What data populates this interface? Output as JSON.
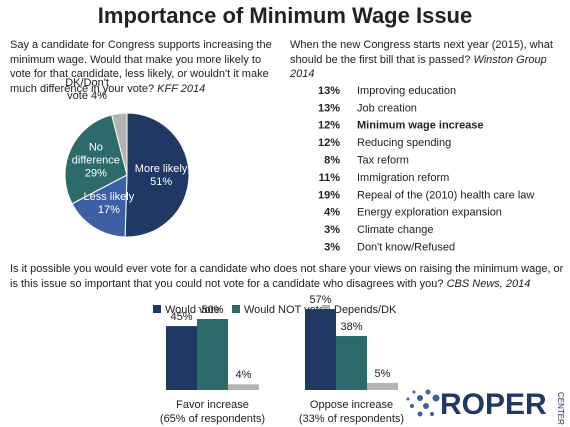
{
  "title": "Importance of Minimum Wage Issue",
  "chart_data": [
    {
      "type": "pie",
      "question": "Say a candidate for Congress supports increasing the minimum wage. Would that make you more likely to vote for that candidate, less likely, or wouldn't it make much difference in your vote?",
      "source": "KFF 2014",
      "categories": [
        "More likely",
        "Less likely",
        "No difference",
        "DK/Don't vote"
      ],
      "values": [
        51,
        17,
        29,
        4
      ],
      "value_labels": [
        "51%",
        "17%",
        "29%",
        "4%"
      ],
      "colors": [
        "#1f3864",
        "#3d5fa6",
        "#2c6a6c",
        "#b3b3b3"
      ]
    },
    {
      "type": "list",
      "question": "When the new Congress starts next year (2015), what should be the first bill that is passed?",
      "source": "Winston Group 2014",
      "categories": [
        "Improving education",
        "Job creation",
        "Minimum wage increase",
        "Reducing spending",
        "Tax reform",
        "Immigration reform",
        "Repeal of the (2010) health care law",
        "Energy exploration expansion",
        "Climate change",
        "Don't know/Refused"
      ],
      "values": [
        13,
        13,
        12,
        12,
        8,
        11,
        19,
        4,
        3,
        3
      ],
      "value_labels": [
        "13%",
        "13%",
        "12%",
        "12%",
        "8%",
        "11%",
        "19%",
        "4%",
        "3%",
        "3%"
      ],
      "highlight": 2
    },
    {
      "type": "bar",
      "question": "Is it possible you would ever vote for a candidate who does not share your views on raising the minimum wage, or is this issue so important that you could not vote for a candidate who disagrees with you?",
      "source": "CBS News, 2014",
      "categories": [
        "Favor increase",
        "Oppose increase"
      ],
      "category_notes": [
        "(65% of respondents)",
        "(33% of respondents)"
      ],
      "series": [
        {
          "name": "Would vote",
          "color": "#1f3864",
          "values": [
            45,
            57
          ],
          "value_labels": [
            "45%",
            "57%"
          ]
        },
        {
          "name": "Would NOT vote",
          "color": "#2c6a6c",
          "values": [
            50,
            38
          ],
          "value_labels": [
            "50%",
            "38%"
          ]
        },
        {
          "name": "Depends/DK",
          "color": "#b3b3b3",
          "values": [
            4,
            5
          ],
          "value_labels": [
            "4%",
            "5%"
          ]
        }
      ]
    }
  ],
  "logo": {
    "text": "ROPER",
    "sub": "CENTER"
  }
}
